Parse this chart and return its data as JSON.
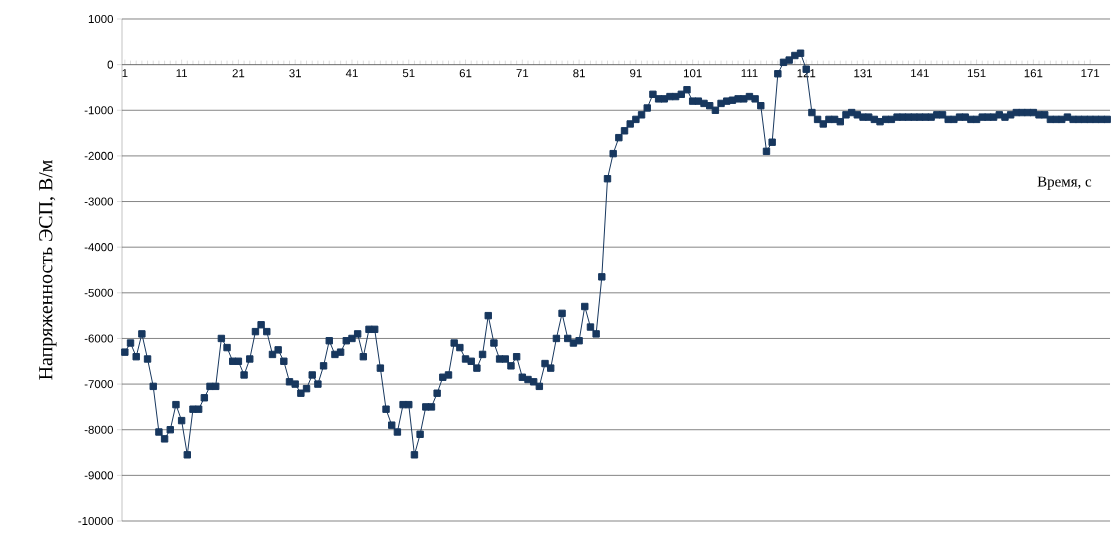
{
  "chart_data": {
    "type": "line",
    "xlabel": "Время, с",
    "ylabel": "Напряженность ЭСП, В/м",
    "x": [
      1,
      2,
      3,
      4,
      5,
      6,
      7,
      8,
      9,
      10,
      11,
      12,
      13,
      14,
      15,
      16,
      17,
      18,
      19,
      20,
      21,
      22,
      23,
      24,
      25,
      26,
      27,
      28,
      29,
      30,
      31,
      32,
      33,
      34,
      35,
      36,
      37,
      38,
      39,
      40,
      41,
      42,
      43,
      44,
      45,
      46,
      47,
      48,
      49,
      50,
      51,
      52,
      53,
      54,
      55,
      56,
      57,
      58,
      59,
      60,
      61,
      62,
      63,
      64,
      65,
      66,
      67,
      68,
      69,
      70,
      71,
      72,
      73,
      74,
      75,
      76,
      77,
      78,
      79,
      80,
      81,
      82,
      83,
      84,
      85,
      86,
      87,
      88,
      89,
      90,
      91,
      92,
      93,
      94,
      95,
      96,
      97,
      98,
      99,
      100,
      101,
      102,
      103,
      104,
      105,
      106,
      107,
      108,
      109,
      110,
      111,
      112,
      113,
      114,
      115,
      116,
      117,
      118,
      119,
      120,
      121,
      122,
      123,
      124,
      125,
      126,
      127,
      128,
      129,
      130,
      131,
      132,
      133,
      134,
      135,
      136,
      137,
      138,
      139,
      140,
      141,
      142,
      143,
      144,
      145,
      146,
      147,
      148,
      149,
      150,
      151,
      152,
      153,
      154,
      155,
      156,
      157,
      158,
      159,
      160,
      161,
      162,
      163,
      164,
      165,
      166,
      167,
      168,
      169,
      170,
      171,
      172,
      173,
      174
    ],
    "series": [
      {
        "color": "#17375e",
        "values": [
          -6300,
          -6100,
          -6400,
          -5900,
          -6450,
          -7050,
          -8050,
          -8200,
          -8000,
          -7450,
          -7800,
          -8550,
          -7550,
          -7550,
          -7300,
          -7050,
          -7050,
          -6000,
          -6200,
          -6500,
          -6500,
          -6800,
          -6450,
          -5850,
          -5700,
          -5850,
          -6350,
          -6250,
          -6500,
          -6950,
          -7000,
          -7200,
          -7100,
          -6800,
          -7000,
          -6600,
          -6050,
          -6350,
          -6300,
          -6050,
          -6000,
          -5900,
          -6400,
          -5800,
          -5800,
          -6650,
          -7550,
          -7900,
          -8050,
          -7450,
          -7450,
          -8550,
          -8100,
          -7500,
          -7500,
          -7200,
          -6850,
          -6800,
          -6100,
          -6200,
          -6450,
          -6500,
          -6650,
          -6350,
          -5500,
          -6100,
          -6450,
          -6450,
          -6600,
          -6400,
          -6850,
          -6900,
          -6950,
          -7050,
          -6550,
          -6650,
          -6000,
          -5450,
          -6000,
          -6100,
          -6050,
          -5300,
          -5750,
          -5900,
          -4650,
          -2500,
          -1950,
          -1600,
          -1450,
          -1300,
          -1200,
          -1100,
          -950,
          -650,
          -750,
          -750,
          -700,
          -700,
          -650,
          -550,
          -800,
          -800,
          -850,
          -900,
          -1000,
          -850,
          -800,
          -780,
          -750,
          -750,
          -700,
          -750,
          -900,
          -1900,
          -1700,
          -200,
          50,
          100,
          200,
          250,
          -100,
          -1050,
          -1200,
          -1300,
          -1200,
          -1200,
          -1250,
          -1100,
          -1050,
          -1100,
          -1150,
          -1150,
          -1200,
          -1250,
          -1200,
          -1200,
          -1150,
          -1150,
          -1150,
          -1150,
          -1150,
          -1150,
          -1150,
          -1100,
          -1100,
          -1200,
          -1200,
          -1150,
          -1150,
          -1200,
          -1200,
          -1150,
          -1150,
          -1150,
          -1100,
          -1150,
          -1100,
          -1050,
          -1050,
          -1050,
          -1050,
          -1100,
          -1100,
          -1200,
          -1200,
          -1200,
          -1150,
          -1200,
          -1200,
          -1200,
          -1200,
          -1200,
          -1200,
          -1200
        ]
      }
    ],
    "xlim": [
      0.5,
      174.5
    ],
    "xticks": [
      1,
      11,
      21,
      31,
      41,
      51,
      61,
      71,
      81,
      91,
      101,
      111,
      121,
      131,
      141,
      151,
      161,
      171
    ],
    "ylim": [
      -10000,
      1000
    ],
    "yticks": [
      -10000,
      -9000,
      -8000,
      -7000,
      -6000,
      -5000,
      -4000,
      -3000,
      -2000,
      -1000,
      0,
      1000
    ],
    "grid": "y",
    "marker": "square",
    "line_style": "solid"
  }
}
